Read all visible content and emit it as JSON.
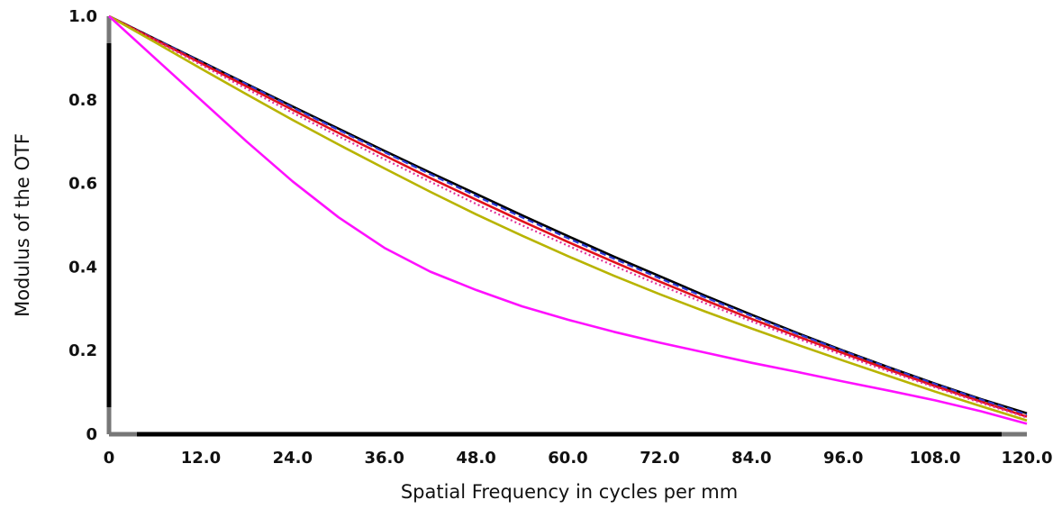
{
  "chart_data": {
    "type": "line",
    "title": "",
    "xlabel": "Spatial Frequency in cycles per mm",
    "ylabel": "Modulus of the OTF",
    "xlim": [
      0,
      120
    ],
    "ylim": [
      0,
      1.0
    ],
    "xticks": [
      "0",
      "12.0",
      "24.0",
      "36.0",
      "48.0",
      "60.0",
      "72.0",
      "84.0",
      "96.0",
      "108.0",
      "120.0"
    ],
    "yticks": [
      "0",
      "0.2",
      "0.4",
      "0.6",
      "0.8",
      "1.0"
    ],
    "grid": false,
    "x": [
      0,
      6,
      12,
      18,
      24,
      30,
      36,
      42,
      48,
      54,
      60,
      66,
      72,
      78,
      84,
      90,
      96,
      102,
      108,
      114,
      120
    ],
    "series": [
      {
        "color": "#000000",
        "style": "solid",
        "values": [
          1.0,
          0.946,
          0.892,
          0.838,
          0.784,
          0.731,
          0.678,
          0.626,
          0.575,
          0.524,
          0.474,
          0.425,
          0.378,
          0.331,
          0.286,
          0.242,
          0.2,
          0.16,
          0.121,
          0.084,
          0.05
        ]
      },
      {
        "color": "#2a3bd6",
        "style": "dashed",
        "values": [
          1.0,
          0.946,
          0.891,
          0.837,
          0.782,
          0.728,
          0.675,
          0.622,
          0.57,
          0.519,
          0.469,
          0.42,
          0.373,
          0.327,
          0.283,
          0.24,
          0.199,
          0.159,
          0.12,
          0.083,
          0.047
        ]
      },
      {
        "color": "#e0101a",
        "style": "solid",
        "values": [
          1.0,
          0.944,
          0.888,
          0.832,
          0.776,
          0.721,
          0.667,
          0.613,
          0.561,
          0.51,
          0.46,
          0.412,
          0.365,
          0.32,
          0.276,
          0.234,
          0.194,
          0.154,
          0.115,
          0.078,
          0.042
        ]
      },
      {
        "color": "#e0309a",
        "style": "dotted",
        "values": [
          1.0,
          0.942,
          0.884,
          0.826,
          0.769,
          0.713,
          0.658,
          0.604,
          0.551,
          0.5,
          0.451,
          0.403,
          0.357,
          0.313,
          0.27,
          0.229,
          0.189,
          0.15,
          0.112,
          0.075,
          0.04
        ]
      },
      {
        "color": "#b8b400",
        "style": "solid",
        "values": [
          1.0,
          0.938,
          0.875,
          0.813,
          0.752,
          0.693,
          0.636,
          0.58,
          0.526,
          0.475,
          0.426,
          0.379,
          0.335,
          0.293,
          0.253,
          0.214,
          0.176,
          0.139,
          0.102,
          0.067,
          0.033
        ]
      },
      {
        "color": "#ff10ff",
        "style": "solid",
        "values": [
          1.0,
          0.9,
          0.8,
          0.7,
          0.605,
          0.519,
          0.446,
          0.389,
          0.345,
          0.306,
          0.274,
          0.245,
          0.219,
          0.195,
          0.171,
          0.149,
          0.126,
          0.104,
          0.081,
          0.055,
          0.025
        ]
      }
    ]
  }
}
